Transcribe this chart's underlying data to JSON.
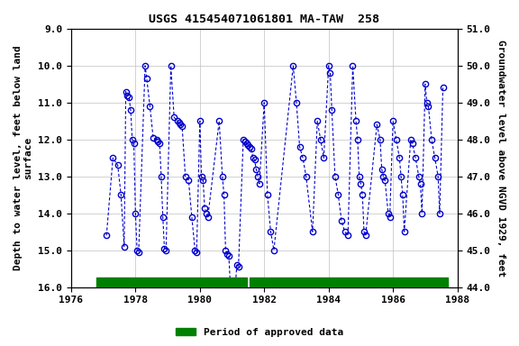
{
  "title": "USGS 415454071061801 MA-TAW  258",
  "ylabel_left": "Depth to water level, feet below land\nsurface",
  "ylabel_right": "Groundwater level above NGVD 1929, feet",
  "ylim_left": [
    16.0,
    9.0
  ],
  "ylim_right": [
    44.0,
    51.0
  ],
  "xlim": [
    1976,
    1988
  ],
  "xticks": [
    1976,
    1978,
    1980,
    1982,
    1984,
    1986,
    1988
  ],
  "yticks_left": [
    9.0,
    10.0,
    11.0,
    12.0,
    13.0,
    14.0,
    15.0,
    16.0
  ],
  "yticks_right": [
    44.0,
    45.0,
    46.0,
    47.0,
    48.0,
    49.0,
    50.0,
    51.0
  ],
  "ytick_labels_left": [
    "9.0",
    "10.0",
    "11.0",
    "12.0",
    "13.0",
    "14.0",
    "15.0",
    "16.0"
  ],
  "ytick_labels_right": [
    "44.0",
    "45.0",
    "46.0",
    "47.0",
    "48.0",
    "49.0",
    "50.0",
    "51.0"
  ],
  "xtick_labels": [
    "1976",
    "1978",
    "1980",
    "1982",
    "1984",
    "1986",
    "1988"
  ],
  "data_color": "#0000CC",
  "legend_color": "#008000",
  "legend_label": "Period of approved data",
  "background_color": "#ffffff",
  "plot_bg_color": "#ffffff",
  "grid_color": "#c0c0c0",
  "bar_y": 16.0,
  "bar_xstart": 1976.8,
  "bar_xend": 1987.7,
  "bar_gap_start": 1981.45,
  "bar_gap_end": 1981.55,
  "bar_thickness": 0.25,
  "data_points": [
    [
      1977.1,
      14.6
    ],
    [
      1977.3,
      12.5
    ],
    [
      1977.45,
      12.7
    ],
    [
      1977.55,
      13.5
    ],
    [
      1977.65,
      14.9
    ],
    [
      1977.7,
      10.7
    ],
    [
      1977.75,
      10.8
    ],
    [
      1977.8,
      10.85
    ],
    [
      1977.85,
      11.2
    ],
    [
      1977.9,
      12.0
    ],
    [
      1977.95,
      12.1
    ],
    [
      1978.0,
      14.0
    ],
    [
      1978.05,
      15.0
    ],
    [
      1978.1,
      15.05
    ],
    [
      1978.3,
      10.0
    ],
    [
      1978.35,
      10.35
    ],
    [
      1978.45,
      11.1
    ],
    [
      1978.55,
      11.95
    ],
    [
      1978.65,
      12.0
    ],
    [
      1978.7,
      12.05
    ],
    [
      1978.75,
      12.1
    ],
    [
      1978.8,
      13.0
    ],
    [
      1978.85,
      14.1
    ],
    [
      1978.9,
      14.95
    ],
    [
      1978.95,
      15.0
    ],
    [
      1979.1,
      10.0
    ],
    [
      1979.2,
      11.4
    ],
    [
      1979.3,
      11.5
    ],
    [
      1979.35,
      11.55
    ],
    [
      1979.4,
      11.6
    ],
    [
      1979.45,
      11.65
    ],
    [
      1979.55,
      13.0
    ],
    [
      1979.65,
      13.1
    ],
    [
      1979.75,
      14.1
    ],
    [
      1979.85,
      15.0
    ],
    [
      1979.9,
      15.05
    ],
    [
      1980.0,
      11.5
    ],
    [
      1980.05,
      13.0
    ],
    [
      1980.1,
      13.1
    ],
    [
      1980.15,
      13.85
    ],
    [
      1980.2,
      14.0
    ],
    [
      1980.25,
      14.1
    ],
    [
      1980.6,
      11.5
    ],
    [
      1980.7,
      13.0
    ],
    [
      1980.75,
      13.5
    ],
    [
      1980.8,
      15.0
    ],
    [
      1980.85,
      15.1
    ],
    [
      1980.9,
      15.15
    ],
    [
      1980.95,
      16.0
    ],
    [
      1981.0,
      16.05
    ],
    [
      1981.05,
      16.1
    ],
    [
      1981.1,
      16.0
    ],
    [
      1981.15,
      15.4
    ],
    [
      1981.2,
      15.45
    ],
    [
      1981.35,
      12.0
    ],
    [
      1981.4,
      12.05
    ],
    [
      1981.45,
      12.1
    ],
    [
      1981.5,
      12.15
    ],
    [
      1981.55,
      12.2
    ],
    [
      1981.6,
      12.25
    ],
    [
      1981.65,
      12.5
    ],
    [
      1981.7,
      12.55
    ],
    [
      1981.75,
      12.8
    ],
    [
      1981.8,
      13.0
    ],
    [
      1981.85,
      13.2
    ],
    [
      1982.0,
      11.0
    ],
    [
      1982.1,
      13.5
    ],
    [
      1982.2,
      14.5
    ],
    [
      1982.3,
      15.0
    ],
    [
      1982.9,
      10.0
    ],
    [
      1983.0,
      11.0
    ],
    [
      1983.1,
      12.2
    ],
    [
      1983.2,
      12.5
    ],
    [
      1983.3,
      13.0
    ],
    [
      1983.5,
      14.5
    ],
    [
      1983.65,
      11.5
    ],
    [
      1983.75,
      12.0
    ],
    [
      1983.85,
      12.5
    ],
    [
      1984.0,
      10.0
    ],
    [
      1984.05,
      10.2
    ],
    [
      1984.1,
      11.2
    ],
    [
      1984.2,
      13.0
    ],
    [
      1984.3,
      13.5
    ],
    [
      1984.4,
      14.2
    ],
    [
      1984.5,
      14.5
    ],
    [
      1984.6,
      14.6
    ],
    [
      1984.75,
      10.0
    ],
    [
      1984.85,
      11.5
    ],
    [
      1984.9,
      12.0
    ],
    [
      1984.95,
      13.0
    ],
    [
      1985.0,
      13.2
    ],
    [
      1985.05,
      13.5
    ],
    [
      1985.1,
      14.5
    ],
    [
      1985.15,
      14.6
    ],
    [
      1985.5,
      11.6
    ],
    [
      1985.6,
      12.0
    ],
    [
      1985.65,
      12.8
    ],
    [
      1985.7,
      13.0
    ],
    [
      1985.75,
      13.1
    ],
    [
      1985.85,
      14.0
    ],
    [
      1985.9,
      14.1
    ],
    [
      1986.0,
      11.5
    ],
    [
      1986.1,
      12.0
    ],
    [
      1986.2,
      12.5
    ],
    [
      1986.25,
      13.0
    ],
    [
      1986.3,
      13.5
    ],
    [
      1986.35,
      14.5
    ],
    [
      1986.55,
      12.0
    ],
    [
      1986.6,
      12.1
    ],
    [
      1986.7,
      12.5
    ],
    [
      1986.8,
      13.0
    ],
    [
      1986.85,
      13.2
    ],
    [
      1986.9,
      14.0
    ],
    [
      1987.0,
      10.5
    ],
    [
      1987.05,
      11.0
    ],
    [
      1987.1,
      11.1
    ],
    [
      1987.2,
      12.0
    ],
    [
      1987.3,
      12.5
    ],
    [
      1987.4,
      13.0
    ],
    [
      1987.45,
      14.0
    ],
    [
      1987.55,
      10.6
    ]
  ]
}
